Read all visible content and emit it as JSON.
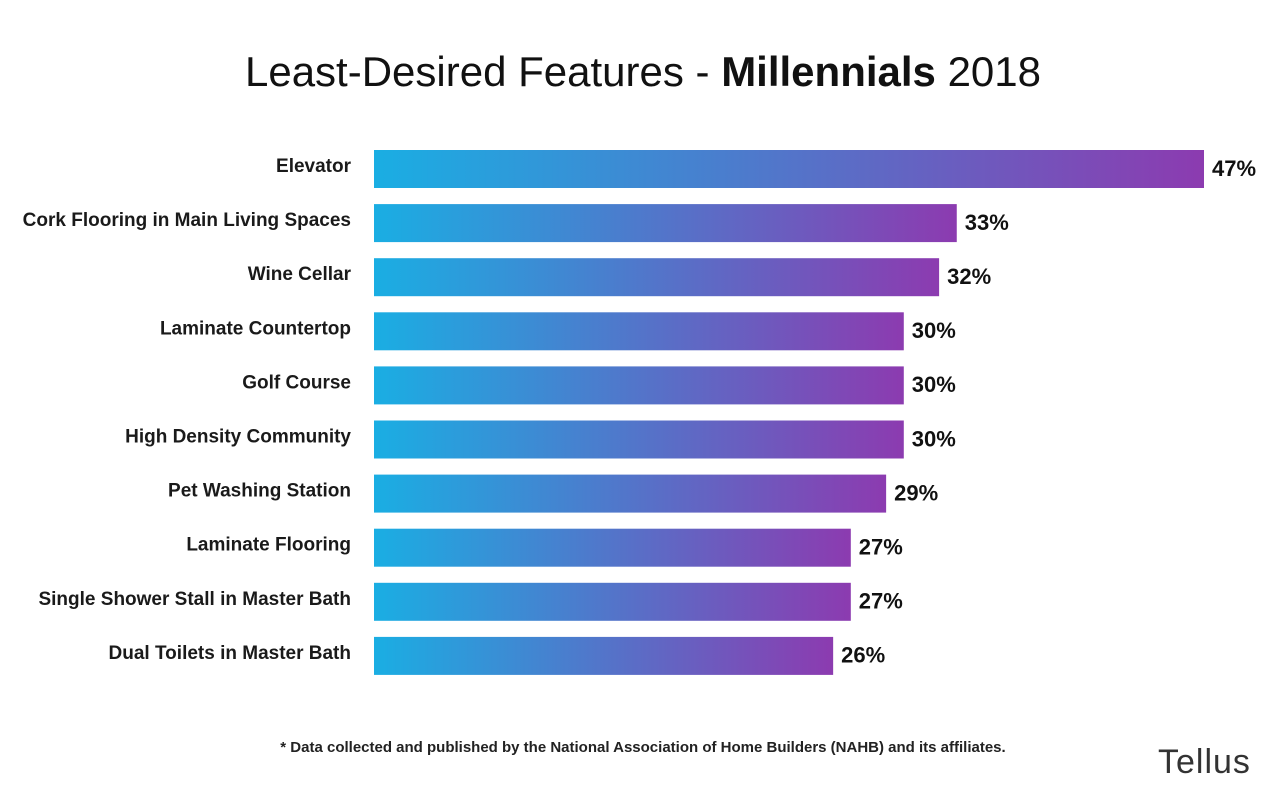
{
  "title": {
    "part1": "Least-Desired Features - ",
    "part2": "Millennials",
    "part3": " 2018"
  },
  "footnote": "* Data collected and published by the National Association of Home Builders (NAHB) and its affiliates.",
  "logo": "Tellus",
  "colors": {
    "bar_start": "#1aaee3",
    "bar_end": "#8c3bb0",
    "text": "#111111"
  },
  "chart_data": {
    "type": "bar",
    "orientation": "horizontal",
    "categories": [
      "Elevator",
      "Cork Flooring in Main Living Spaces",
      "Wine Cellar",
      "Laminate Countertop",
      "Golf Course",
      "High Density Community",
      "Pet Washing Station",
      "Laminate Flooring",
      "Single Shower Stall in Master Bath",
      "Dual Toilets in Master Bath"
    ],
    "values": [
      47,
      33,
      32,
      30,
      30,
      30,
      29,
      27,
      27,
      26
    ],
    "value_labels": [
      "47%",
      "33%",
      "32%",
      "30%",
      "30%",
      "30%",
      "29%",
      "27%",
      "27%",
      "26%"
    ],
    "xlim": [
      0,
      47
    ],
    "grid": false,
    "legend": "none"
  }
}
